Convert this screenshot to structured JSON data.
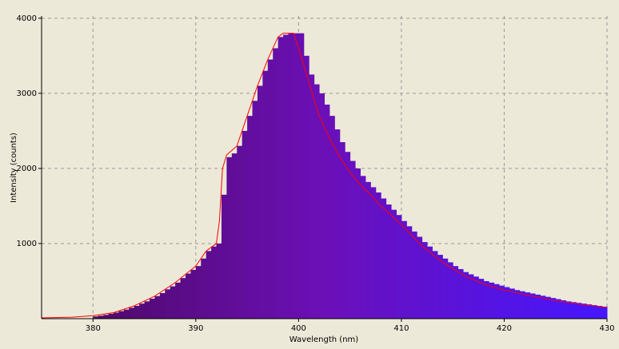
{
  "chart_data": {
    "type": "histogram",
    "x_label": "Wavelength (nm)",
    "y_label": "Intensity (counts)",
    "xlim": [
      375,
      430
    ],
    "ylim": [
      0,
      4030
    ],
    "xticks": [
      380,
      390,
      400,
      410,
      420,
      430
    ],
    "yticks": [
      1000,
      2000,
      3000,
      4000
    ],
    "grid": true,
    "color_stops": [
      "#4a0858",
      "#6b10b8",
      "#4616ff"
    ],
    "bins": [
      380,
      380.5,
      381,
      381.5,
      382,
      382.5,
      383,
      383.5,
      384,
      384.5,
      385,
      385.5,
      386,
      386.5,
      387,
      387.5,
      388,
      388.5,
      389,
      389.5,
      390,
      390.5,
      391,
      391.5,
      392,
      392.5,
      393,
      393.5,
      394,
      394.5,
      395,
      395.5,
      396,
      396.5,
      397,
      397.5,
      398,
      398.5,
      399,
      399.5,
      400,
      400.5,
      401,
      401.5,
      402,
      402.5,
      403,
      403.5,
      404,
      404.5,
      405,
      405.5,
      406,
      406.5,
      407,
      407.5,
      408,
      408.5,
      409,
      409.5,
      410,
      410.5,
      411,
      411.5,
      412,
      412.5,
      413,
      413.5,
      414,
      414.5,
      415,
      415.5,
      416,
      416.5,
      417,
      417.5,
      418,
      418.5,
      419,
      419.5,
      420,
      420.5,
      421,
      421.5,
      422,
      422.5,
      423,
      423.5,
      424,
      424.5,
      425,
      425.5,
      426,
      426.5,
      427,
      427.5,
      428,
      428.5,
      429,
      429.5,
      430
    ],
    "values": [
      30,
      40,
      50,
      65,
      80,
      100,
      120,
      145,
      170,
      200,
      230,
      265,
      300,
      340,
      390,
      430,
      480,
      540,
      600,
      650,
      700,
      800,
      900,
      960,
      1000,
      1650,
      2150,
      2200,
      2300,
      2500,
      2700,
      2900,
      3100,
      3300,
      3450,
      3600,
      3750,
      3780,
      3800,
      3800,
      3800,
      3500,
      3250,
      3120,
      3000,
      2850,
      2700,
      2520,
      2350,
      2220,
      2100,
      2000,
      1900,
      1820,
      1750,
      1680,
      1600,
      1520,
      1450,
      1380,
      1300,
      1230,
      1160,
      1090,
      1020,
      960,
      900,
      850,
      800,
      750,
      700,
      660,
      620,
      590,
      560,
      530,
      500,
      480,
      460,
      440,
      420,
      400,
      380,
      365,
      350,
      335,
      320,
      305,
      290,
      275,
      260,
      245,
      230,
      220,
      210,
      200,
      190,
      180,
      170,
      160
    ],
    "line": {
      "color": "#ff0000",
      "x": [
        375,
        378,
        380,
        382,
        384,
        386,
        388,
        390,
        391,
        392,
        392.3,
        392.6,
        393,
        394,
        395,
        396,
        397,
        398,
        398.5,
        399.5,
        400,
        401,
        402,
        403,
        404,
        405,
        406,
        407,
        408,
        409,
        410,
        412,
        414,
        416,
        418,
        420,
        422,
        425,
        428,
        430
      ],
      "y": [
        10,
        20,
        40,
        80,
        170,
        300,
        480,
        700,
        900,
        1000,
        1300,
        2000,
        2180,
        2300,
        2700,
        3100,
        3450,
        3750,
        3800,
        3800,
        3600,
        3150,
        2700,
        2400,
        2150,
        1950,
        1780,
        1650,
        1500,
        1380,
        1250,
        970,
        750,
        580,
        460,
        380,
        320,
        240,
        180,
        150
      ]
    }
  }
}
